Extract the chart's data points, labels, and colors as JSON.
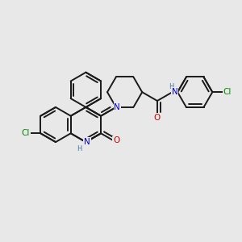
{
  "bg_color": "#e8e8e8",
  "bond_color": "#1a1a1a",
  "bond_width": 1.4,
  "N_color": "#0000cc",
  "O_color": "#cc0000",
  "Cl_color": "#008800",
  "H_color": "#4477aa",
  "font_size": 7.5,
  "xlim": [
    0,
    10
  ],
  "ylim": [
    0,
    10
  ]
}
